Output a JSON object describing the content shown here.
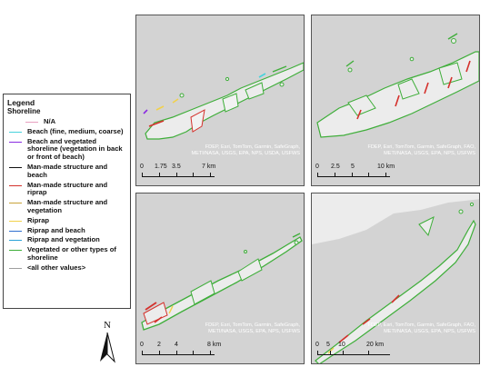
{
  "legend": {
    "title": "Legend",
    "subtitle": "Shoreline",
    "items": [
      {
        "label": "N/A",
        "color": "#e8a0c0"
      },
      {
        "label": "Beach (fine, medium, coarse)",
        "color": "#47d3dc"
      },
      {
        "label": "Beach and vegetated shoreline (vegetation in back or front of beach)",
        "color": "#8a2be2"
      },
      {
        "label": "Man-made structure and beach",
        "color": "#111111"
      },
      {
        "label": "Man-made structure and riprap",
        "color": "#d4312c"
      },
      {
        "label": "Man-made structure and vegetation",
        "color": "#c8a23a"
      },
      {
        "label": "Riprap",
        "color": "#f2d14a"
      },
      {
        "label": "Riprap and beach",
        "color": "#2f6fd0"
      },
      {
        "label": "Riprap and vegetation",
        "color": "#2aa3d8"
      },
      {
        "label": "Vegetated or other types of shoreline",
        "color": "#3fae3a"
      },
      {
        "label": "<all other values>",
        "color": "#9e9e9e"
      }
    ]
  },
  "panels": [
    {
      "credit": "FDEP, Esri, TomTom, Garmin, SafeGraph, METI/NASA, USGS, EPA, NPS, USDA, USFWS",
      "scale": {
        "ticks": [
          "0",
          "1.75",
          "3.5",
          "",
          "7 km"
        ]
      }
    },
    {
      "credit": "FDEP, Esri, TomTom, Garmin, SafeGraph, FAO, METI/NASA, USGS, EPA, NPS, USFWS",
      "scale": {
        "ticks": [
          "0",
          "2.5",
          "5",
          "",
          "10 km"
        ]
      }
    },
    {
      "credit": "FDEP, Esri, TomTom, Garmin, SafeGraph, METI/NASA, USGS, EPA, NPS, USFWS",
      "scale": {
        "ticks": [
          "0",
          "2",
          "4",
          "",
          "8 km"
        ]
      }
    },
    {
      "credit": "FDEP, Esri, TomTom, Garmin, SafeGraph, FAO, METI/NASA, USGS, EPA, NPS, USFWS",
      "scale": {
        "ticks": [
          "0",
          "5",
          "10",
          "",
          "20 km"
        ]
      }
    }
  ],
  "north_arrow": {
    "label": "N"
  },
  "colors": {
    "land": "#ececec",
    "water": "#d3d3d3",
    "vegetated": "#3fae3a",
    "riprap_structure": "#d4312c"
  }
}
